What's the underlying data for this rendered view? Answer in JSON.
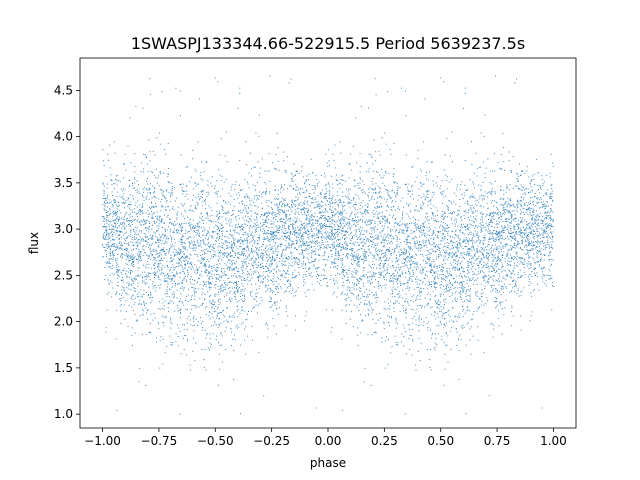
{
  "chart_data": {
    "type": "scatter",
    "title": "1SWASPJ133344.66-522915.5 Period 5639237.5s",
    "xlabel": "phase",
    "ylabel": "flux",
    "xlim": [
      -1.1,
      1.1
    ],
    "ylim": [
      0.85,
      4.85
    ],
    "xticks": [
      -1.0,
      -0.75,
      -0.5,
      -0.25,
      0.0,
      0.25,
      0.5,
      0.75,
      1.0
    ],
    "xtick_labels": [
      "−1.00",
      "−0.75",
      "−0.50",
      "−0.25",
      "0.00",
      "0.25",
      "0.50",
      "0.75",
      "1.00"
    ],
    "yticks": [
      1.0,
      1.5,
      2.0,
      2.5,
      3.0,
      3.5,
      4.0,
      4.5
    ],
    "ytick_labels": [
      "1.0",
      "1.5",
      "2.0",
      "2.5",
      "3.0",
      "3.5",
      "4.0",
      "4.5"
    ],
    "grid": false,
    "marker_color": "#1f77b4",
    "series": [
      {
        "profile_phase": [
          0.0,
          0.05,
          0.1,
          0.15,
          0.2,
          0.25,
          0.3,
          0.35,
          0.4,
          0.45,
          0.5,
          0.55,
          0.6,
          0.65,
          0.7,
          0.75,
          0.8,
          0.85,
          0.9,
          0.95,
          1.0
        ],
        "profile_flux_median": [
          3.05,
          2.95,
          2.85,
          2.8,
          2.95,
          2.85,
          2.7,
          2.65,
          2.75,
          2.7,
          2.6,
          2.75,
          2.65,
          2.8,
          2.8,
          2.85,
          2.9,
          2.95,
          2.95,
          3.0,
          3.05
        ],
        "profile_flux_spread": [
          0.3,
          0.35,
          0.4,
          0.45,
          0.45,
          0.45,
          0.45,
          0.45,
          0.45,
          0.45,
          0.45,
          0.45,
          0.45,
          0.4,
          0.4,
          0.4,
          0.35,
          0.35,
          0.3,
          0.3,
          0.3
        ],
        "flux_range": [
          1.0,
          4.75
        ]
      }
    ]
  }
}
